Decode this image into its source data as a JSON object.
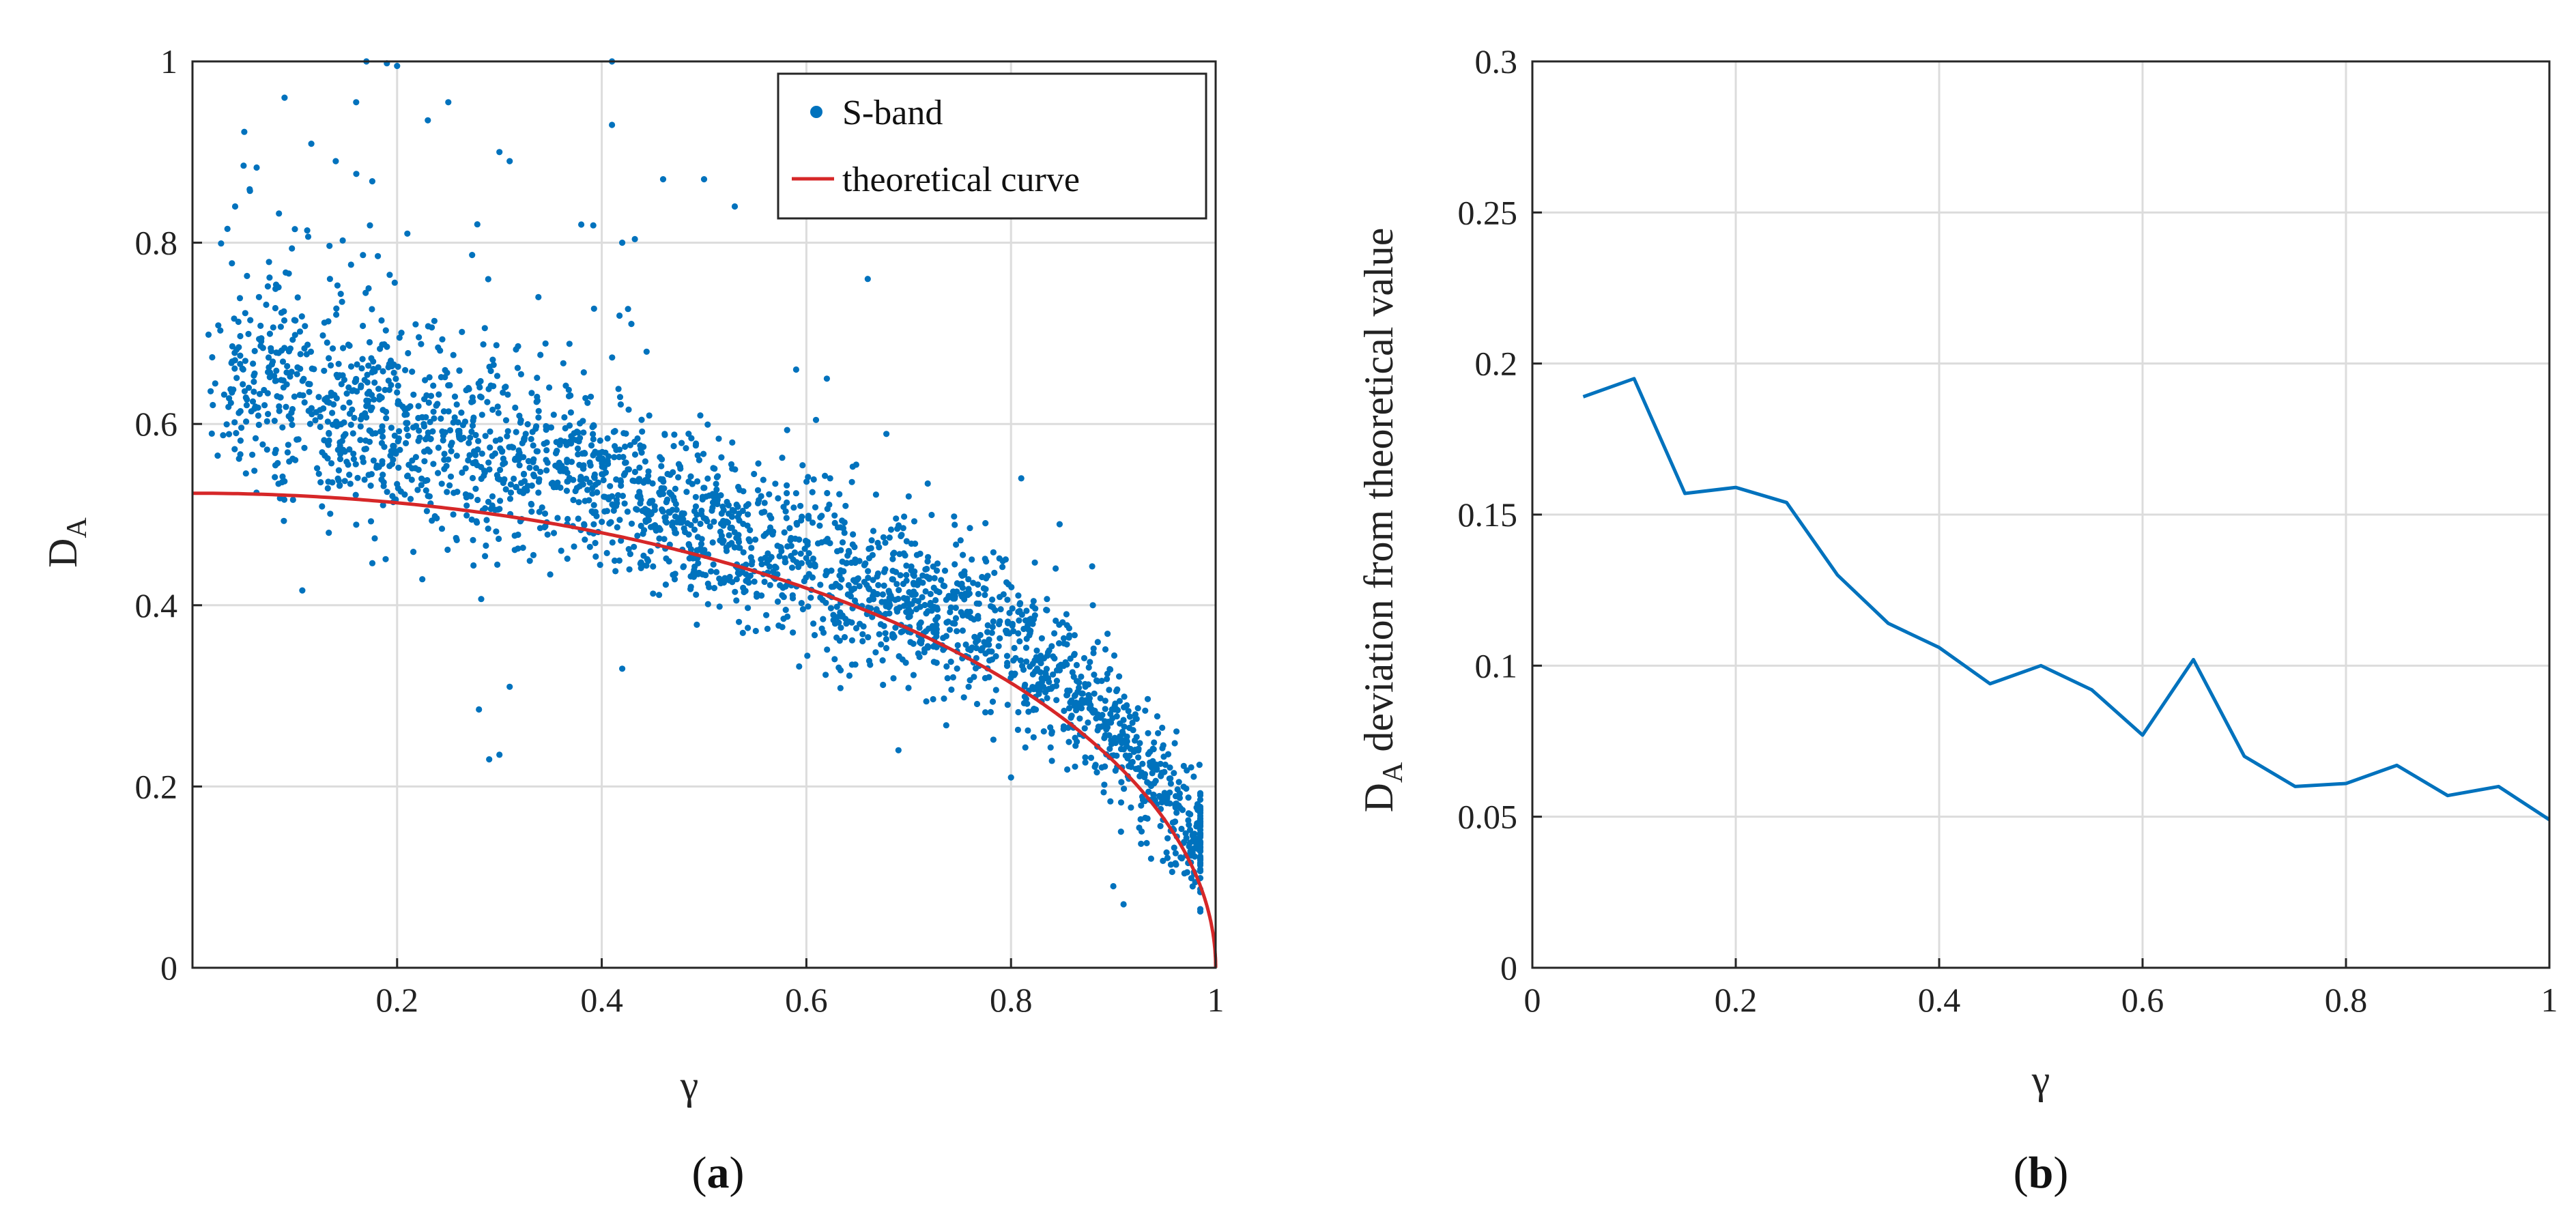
{
  "chart_data": [
    {
      "type": "scatter",
      "panel_label": "(a)",
      "panel_label_prefix": "(",
      "panel_label_letter": "a",
      "panel_label_suffix": ")",
      "xlabel": "γ",
      "ylabel_main": "D",
      "ylabel_sub": "A",
      "xlim": [
        0,
        1
      ],
      "ylim": [
        0,
        1
      ],
      "xticks": [
        0.2,
        0.4,
        0.6,
        0.8,
        1
      ],
      "xtick_labels": [
        "0.2",
        "0.4",
        "0.6",
        "0.8",
        "1"
      ],
      "yticks": [
        0,
        0.2,
        0.4,
        0.6,
        0.8,
        1
      ],
      "ytick_labels": [
        "0",
        "0.2",
        "0.4",
        "0.6",
        "0.8",
        "1"
      ],
      "grid": true,
      "legend_position": "top-right",
      "series": [
        {
          "name": "S-band",
          "kind": "scatter",
          "color": "#0072bd",
          "count": 2600,
          "trend_x": [
            0.0,
            0.1,
            0.2,
            0.3,
            0.4,
            0.5,
            0.6,
            0.7,
            0.8,
            0.9,
            0.95,
            0.98
          ],
          "trend_y": [
            0.66,
            0.63,
            0.6,
            0.56,
            0.53,
            0.49,
            0.45,
            0.41,
            0.36,
            0.27,
            0.19,
            0.14
          ],
          "spread": 0.045,
          "outliers": [
            [
              0.17,
              1.0
            ],
            [
              0.19,
              0.998
            ],
            [
              0.2,
              0.995
            ],
            [
              0.41,
              1.0
            ],
            [
              0.09,
              0.96
            ],
            [
              0.16,
              0.955
            ],
            [
              0.25,
              0.955
            ],
            [
              0.41,
              0.93
            ],
            [
              0.23,
              0.935
            ],
            [
              0.05,
              0.885
            ],
            [
              0.3,
              0.9
            ],
            [
              0.31,
              0.89
            ],
            [
              0.3,
              0.235
            ],
            [
              0.29,
              0.23
            ],
            [
              0.28,
              0.285
            ],
            [
              0.31,
              0.31
            ],
            [
              0.42,
              0.33
            ],
            [
              0.66,
              0.76
            ],
            [
              0.69,
              0.24
            ],
            [
              0.8,
              0.21
            ],
            [
              0.91,
              0.07
            ],
            [
              0.9,
              0.09
            ],
            [
              0.5,
              0.87
            ],
            [
              0.46,
              0.87
            ],
            [
              0.53,
              0.84
            ],
            [
              0.38,
              0.82
            ],
            [
              0.42,
              0.8
            ],
            [
              0.14,
              0.89
            ],
            [
              0.21,
              0.81
            ],
            [
              0.59,
              0.66
            ],
            [
              0.62,
              0.65
            ],
            [
              0.7,
              0.52
            ],
            [
              0.81,
              0.54
            ],
            [
              0.88,
              0.4
            ]
          ]
        },
        {
          "name": "theoretical curve",
          "kind": "line",
          "color": "#d62728",
          "x0": 0.0,
          "y0": 0.5236
        }
      ]
    },
    {
      "type": "line",
      "panel_label": "(b)",
      "panel_label_prefix": "(",
      "panel_label_letter": "b",
      "panel_label_suffix": ")",
      "xlabel": "γ",
      "ylabel_prefix": "D",
      "ylabel_sub": "A",
      "ylabel_rest": " deviation from theoretical value",
      "xlim": [
        0,
        1
      ],
      "ylim": [
        0,
        0.3
      ],
      "xticks": [
        0,
        0.2,
        0.4,
        0.6,
        0.8,
        1
      ],
      "xtick_labels": [
        "0",
        "0.2",
        "0.4",
        "0.6",
        "0.8",
        "1"
      ],
      "yticks": [
        0,
        0.05,
        0.1,
        0.15,
        0.2,
        0.25,
        0.3
      ],
      "ytick_labels": [
        "0",
        "0.05",
        "0.1",
        "0.15",
        "0.2",
        "0.25",
        "0.3"
      ],
      "grid": true,
      "series": [
        {
          "name": "deviation",
          "color": "#0072bd",
          "x": [
            0.05,
            0.1,
            0.15,
            0.2,
            0.25,
            0.3,
            0.35,
            0.4,
            0.45,
            0.5,
            0.55,
            0.6,
            0.65,
            0.7,
            0.75,
            0.8,
            0.85,
            0.9,
            0.95,
            1.0
          ],
          "y": [
            0.189,
            0.195,
            0.157,
            0.159,
            0.154,
            0.13,
            0.114,
            0.106,
            0.094,
            0.1,
            0.092,
            0.077,
            0.102,
            0.07,
            0.06,
            0.061,
            0.067,
            0.057,
            0.06,
            0.049
          ]
        }
      ]
    }
  ]
}
